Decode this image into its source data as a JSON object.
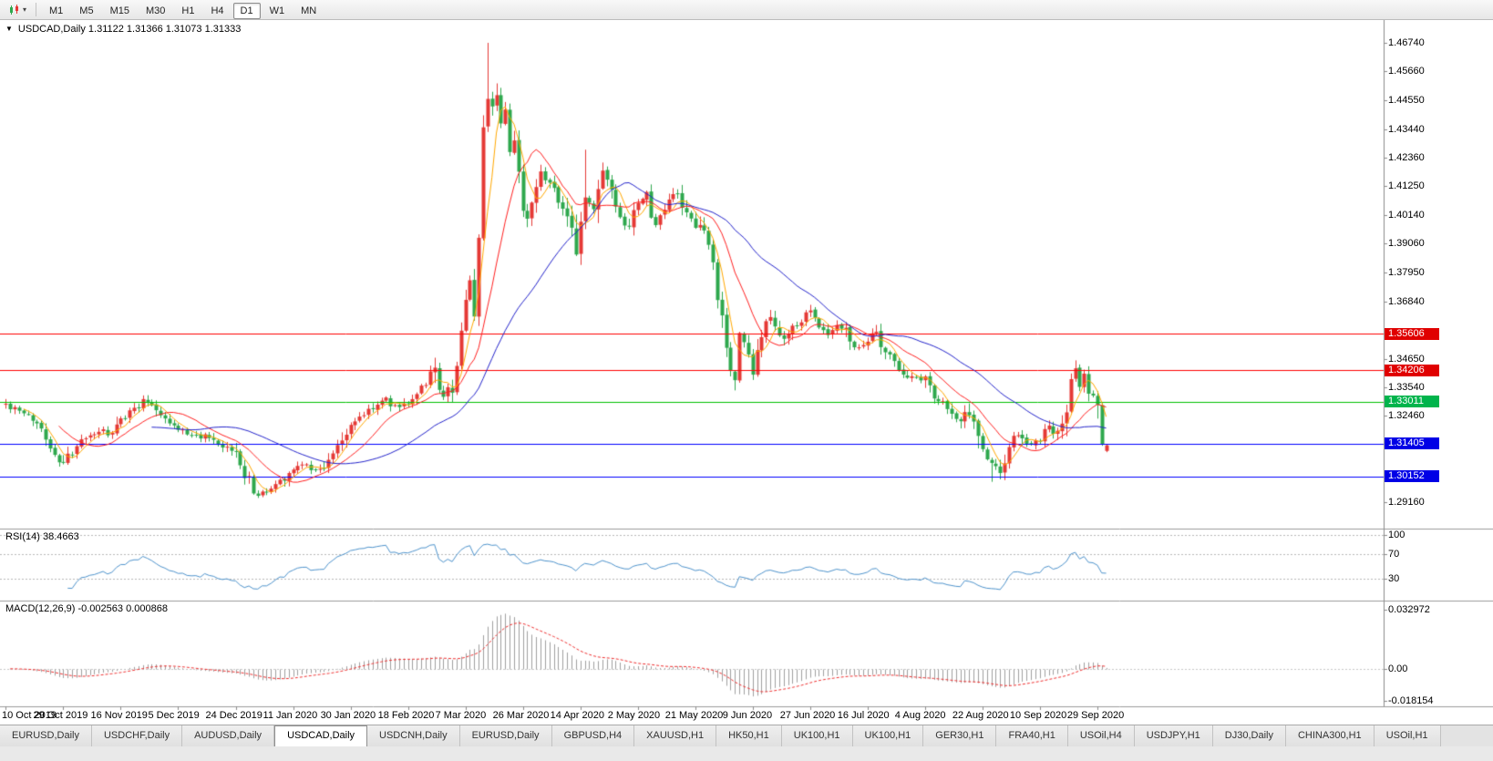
{
  "toolbar": {
    "timeframes": [
      "M1",
      "M5",
      "M15",
      "M30",
      "H1",
      "H4",
      "D1",
      "W1",
      "MN"
    ],
    "active_timeframe": "D1"
  },
  "chart": {
    "symbol": "USDCAD",
    "timeframe": "Daily",
    "title_full": "USDCAD,Daily 1.31122 1.31366 1.31073 1.31333",
    "ohlc": {
      "open": "1.31122",
      "high": "1.31366",
      "low": "1.31073",
      "close": "1.31333"
    },
    "colors": {
      "background": "#ffffff",
      "bull": "#e53935",
      "bear": "#2ea84d",
      "axis_border": "#8c8c8c",
      "divider": "#9c9c9c"
    }
  },
  "price_axis": {
    "ticks": [
      "1.46740",
      "1.45660",
      "1.44550",
      "1.43440",
      "1.42360",
      "1.41250",
      "1.40140",
      "1.39060",
      "1.37950",
      "1.36840",
      "1.34650",
      "1.33540",
      "1.32460",
      "1.29160"
    ],
    "badges": [
      {
        "label": "1.35606",
        "price": 1.35606,
        "color": "#e00000"
      },
      {
        "label": "1.34206",
        "price": 1.34206,
        "color": "#e00000"
      },
      {
        "label": "1.33011",
        "price": 1.33011,
        "color": "#00b44c"
      },
      {
        "label": "1.31405",
        "price": 1.31405,
        "color": "#0000e6"
      },
      {
        "label": "1.30152",
        "price": 1.30152,
        "color": "#0000e6"
      }
    ]
  },
  "horizontal_lines": [
    {
      "price": 1.35606,
      "color": "#ff0000"
    },
    {
      "price": 1.34206,
      "color": "#ff0000"
    },
    {
      "price": 1.33011,
      "color": "#00c000"
    },
    {
      "price": 1.31405,
      "color": "#0000ff"
    },
    {
      "price": 1.30152,
      "color": "#0000ff"
    }
  ],
  "date_axis": {
    "labels": [
      {
        "text": "10 Oct 2019",
        "index": 0
      },
      {
        "text": "29 Oct 2019",
        "index": 13
      },
      {
        "text": "16 Nov 2019",
        "index": 26
      },
      {
        "text": "5 Dec 2019",
        "index": 39
      },
      {
        "text": "24 Dec 2019",
        "index": 52
      },
      {
        "text": "11 Jan 2020",
        "index": 65
      },
      {
        "text": "30 Jan 2020",
        "index": 78
      },
      {
        "text": "18 Feb 2020",
        "index": 91
      },
      {
        "text": "7 Mar 2020",
        "index": 104
      },
      {
        "text": "26 Mar 2020",
        "index": 117
      },
      {
        "text": "14 Apr 2020",
        "index": 130
      },
      {
        "text": "2 May 2020",
        "index": 143
      },
      {
        "text": "21 May 2020",
        "index": 156
      },
      {
        "text": "9 Jun 2020",
        "index": 169
      },
      {
        "text": "27 Jun 2020",
        "index": 182
      },
      {
        "text": "16 Jul 2020",
        "index": 195
      },
      {
        "text": "4 Aug 2020",
        "index": 208
      },
      {
        "text": "22 Aug 2020",
        "index": 221
      },
      {
        "text": "10 Sep 2020",
        "index": 234
      },
      {
        "text": "29 Sep 2020",
        "index": 247
      }
    ]
  },
  "rsi_panel": {
    "label": "RSI(14) 38.4663",
    "value": 38.4663,
    "period": 14,
    "levels": [
      {
        "text": "100",
        "value": 100
      },
      {
        "text": "70",
        "value": 70
      },
      {
        "text": "30",
        "value": 30
      }
    ],
    "line_color": "#4f94cd",
    "level_line_color": "#b8b8b8"
  },
  "macd_panel": {
    "label": "MACD(12,26,9) -0.002563 0.000868",
    "params": [
      12,
      26,
      9
    ],
    "macd_value": -0.002563,
    "signal_value": 0.000868,
    "axis_labels": [
      {
        "text": "0.032972",
        "value": 0.032972
      },
      {
        "text": "0.00",
        "value": 0
      },
      {
        "text": "-0.018154",
        "value": -0.018154
      }
    ],
    "histogram_color": "#a0a0a0",
    "signal_color": "#f03030"
  },
  "tabs": {
    "items": [
      "EURUSD,Daily",
      "USDCHF,Daily",
      "AUDUSD,Daily",
      "USDCAD,Daily",
      "USDCNH,Daily",
      "EURUSD,Daily",
      "GBPUSD,H4",
      "XAUUSD,H1",
      "HK50,H1",
      "UK100,H1",
      "UK100,H1",
      "GER30,H1",
      "FRA40,H1",
      "USOil,H4",
      "USDJPY,H1",
      "DJ30,Daily",
      "CHINA300,H1",
      "USOil,H1"
    ],
    "active_index": 3
  },
  "chart_data": {
    "type": "candlestick",
    "symbol": "USDCAD",
    "timeframe": "Daily",
    "count": 250,
    "price_range": [
      1.28358,
      1.47333
    ],
    "last_candle": {
      "open": 1.31122,
      "high": 1.31366,
      "low": 1.31073,
      "close": 1.31333
    },
    "wick_overrides": [
      {
        "index": 57,
        "low": 1.2932
      },
      {
        "index": 109,
        "high": 1.4674
      },
      {
        "index": 131,
        "high": 1.4265
      },
      {
        "index": 223,
        "low": 1.2994
      }
    ],
    "close_anchors": [
      [
        0,
        1.329
      ],
      [
        3,
        1.326
      ],
      [
        6,
        1.3235
      ],
      [
        9,
        1.318
      ],
      [
        11,
        1.309
      ],
      [
        13,
        1.306
      ],
      [
        15,
        1.311
      ],
      [
        18,
        1.316
      ],
      [
        21,
        1.319
      ],
      [
        24,
        1.317
      ],
      [
        26,
        1.323
      ],
      [
        29,
        1.328
      ],
      [
        32,
        1.331
      ],
      [
        35,
        1.326
      ],
      [
        37,
        1.322
      ],
      [
        39,
        1.32
      ],
      [
        42,
        1.317
      ],
      [
        45,
        1.3165
      ],
      [
        48,
        1.313
      ],
      [
        50,
        1.312
      ],
      [
        52,
        1.31
      ],
      [
        54,
        1.303
      ],
      [
        56,
        1.296
      ],
      [
        57,
        1.2945
      ],
      [
        59,
        1.2955
      ],
      [
        61,
        1.2985
      ],
      [
        63,
        1.301
      ],
      [
        65,
        1.305
      ],
      [
        68,
        1.306
      ],
      [
        70,
        1.304
      ],
      [
        72,
        1.3055
      ],
      [
        74,
        1.31
      ],
      [
        76,
        1.315
      ],
      [
        78,
        1.3215
      ],
      [
        80,
        1.324
      ],
      [
        82,
        1.327
      ],
      [
        84,
        1.329
      ],
      [
        86,
        1.331
      ],
      [
        88,
        1.328
      ],
      [
        90,
        1.329
      ],
      [
        93,
        1.333
      ],
      [
        95,
        1.338
      ],
      [
        97,
        1.342
      ],
      [
        98,
        1.335
      ],
      [
        99,
        1.333
      ],
      [
        101,
        1.336
      ],
      [
        103,
        1.356
      ],
      [
        104,
        1.366
      ],
      [
        105,
        1.373
      ],
      [
        106,
        1.364
      ],
      [
        107,
        1.39
      ],
      [
        108,
        1.435
      ],
      [
        109,
        1.448
      ],
      [
        110,
        1.443
      ],
      [
        111,
        1.45
      ],
      [
        112,
        1.438
      ],
      [
        113,
        1.442
      ],
      [
        114,
        1.423
      ],
      [
        115,
        1.43
      ],
      [
        116,
        1.415
      ],
      [
        117,
        1.406
      ],
      [
        118,
        1.4
      ],
      [
        119,
        1.409
      ],
      [
        120,
        1.414
      ],
      [
        121,
        1.419
      ],
      [
        123,
        1.414
      ],
      [
        125,
        1.409
      ],
      [
        127,
        1.399
      ],
      [
        129,
        1.389
      ],
      [
        131,
        1.409
      ],
      [
        133,
        1.402
      ],
      [
        135,
        1.419
      ],
      [
        137,
        1.409
      ],
      [
        139,
        1.399
      ],
      [
        141,
        1.395
      ],
      [
        143,
        1.406
      ],
      [
        145,
        1.408
      ],
      [
        147,
        1.398
      ],
      [
        149,
        1.403
      ],
      [
        151,
        1.411
      ],
      [
        153,
        1.405
      ],
      [
        156,
        1.395
      ],
      [
        157,
        1.397
      ],
      [
        159,
        1.39
      ],
      [
        161,
        1.37
      ],
      [
        163,
        1.35
      ],
      [
        164,
        1.342
      ],
      [
        165,
        1.339
      ],
      [
        166,
        1.357
      ],
      [
        168,
        1.347
      ],
      [
        169,
        1.342
      ],
      [
        171,
        1.356
      ],
      [
        173,
        1.362
      ],
      [
        176,
        1.354
      ],
      [
        178,
        1.358
      ],
      [
        180,
        1.361
      ],
      [
        182,
        1.365
      ],
      [
        184,
        1.36
      ],
      [
        186,
        1.356
      ],
      [
        188,
        1.36
      ],
      [
        190,
        1.358
      ],
      [
        192,
        1.351
      ],
      [
        195,
        1.354
      ],
      [
        197,
        1.356
      ],
      [
        199,
        1.35
      ],
      [
        201,
        1.345
      ],
      [
        203,
        1.341
      ],
      [
        205,
        1.339
      ],
      [
        208,
        1.339
      ],
      [
        210,
        1.332
      ],
      [
        212,
        1.33
      ],
      [
        214,
        1.325
      ],
      [
        216,
        1.322
      ],
      [
        218,
        1.327
      ],
      [
        220,
        1.318
      ],
      [
        221,
        1.311
      ],
      [
        223,
        1.306
      ],
      [
        225,
        1.303
      ],
      [
        227,
        1.312
      ],
      [
        229,
        1.318
      ],
      [
        231,
        1.313
      ],
      [
        234,
        1.316
      ],
      [
        236,
        1.32
      ],
      [
        238,
        1.317
      ],
      [
        240,
        1.325
      ],
      [
        241,
        1.339
      ],
      [
        242,
        1.341
      ],
      [
        243,
        1.337
      ],
      [
        244,
        1.339
      ],
      [
        245,
        1.335
      ],
      [
        246,
        1.332
      ],
      [
        247,
        1.326
      ],
      [
        248,
        1.3135
      ],
      [
        249,
        1.31333
      ]
    ],
    "moving_averages": [
      {
        "period": 5,
        "color": "#ffa800",
        "type": "sma"
      },
      {
        "period": 13,
        "color": "#ff2020",
        "type": "sma"
      },
      {
        "period": 34,
        "color": "#2424cc",
        "type": "sma"
      }
    ],
    "indicators": {
      "rsi_period": 14,
      "macd": [
        12,
        26,
        9
      ]
    }
  }
}
